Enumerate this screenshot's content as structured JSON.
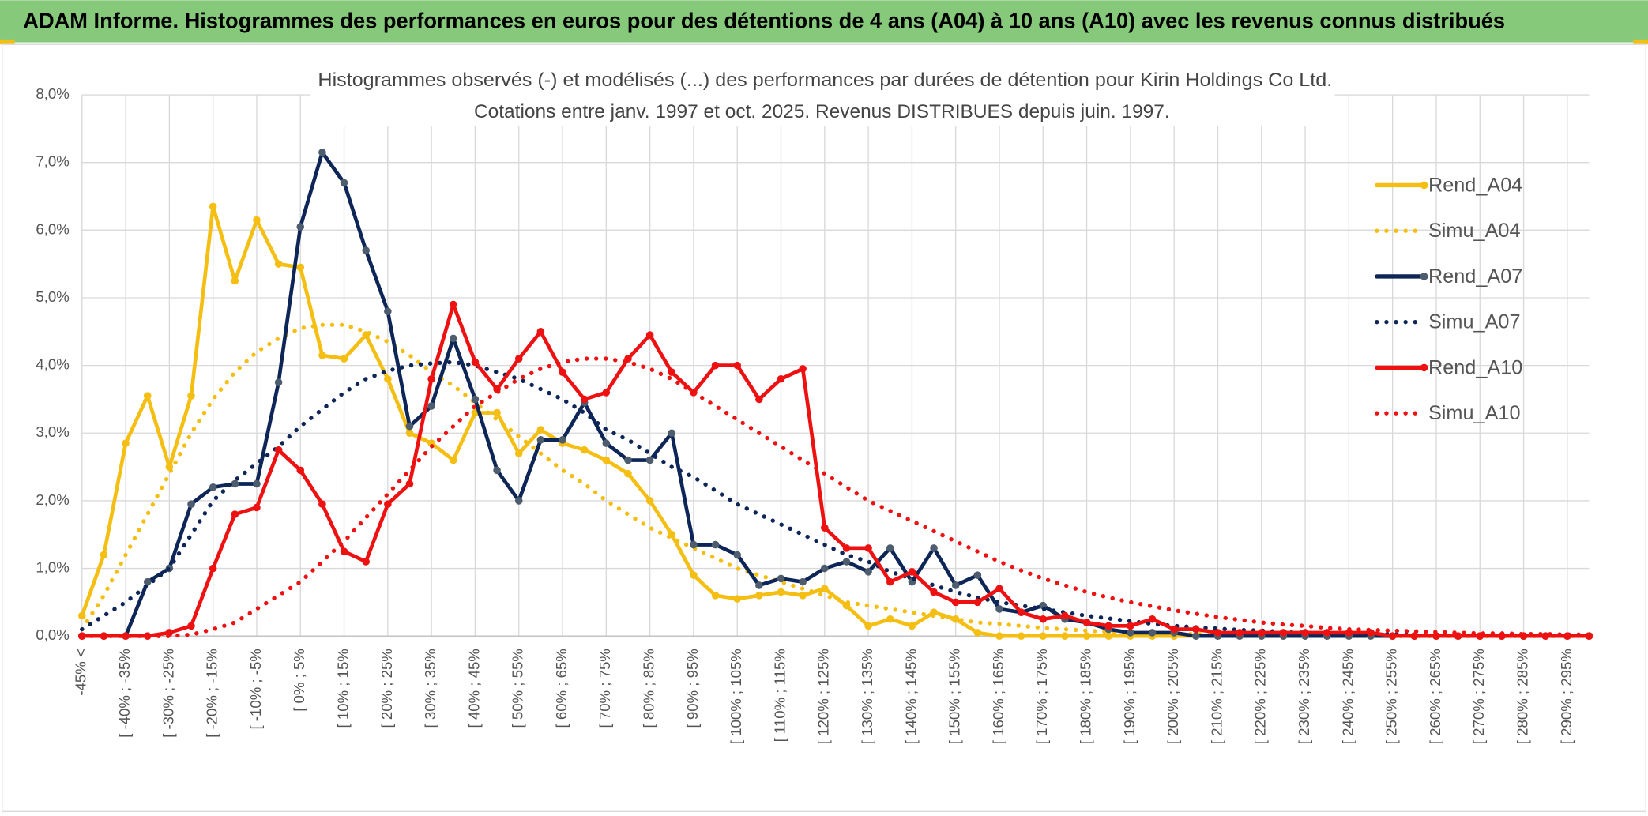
{
  "header": {
    "title": "ADAM Informe. Histogrammes des performances en euros pour des détentions de 4 ans (A04) à 10 ans (A10) avec les revenus connus distribués"
  },
  "chart_data": {
    "type": "line",
    "title": "Histogrammes observés (-) et modélisés (...) des performances par durées de détention pour Kirin Holdings Co Ltd.",
    "subtitle": "Cotations entre janv. 1997 et oct. 2025. Revenus DISTRIBUES depuis juin. 1997.",
    "categories": [
      "-45% <",
      null,
      "[ -40% ; -35%",
      null,
      "[ -30% ; -25%",
      null,
      "[ -20% ; -15%",
      null,
      "[ -10% ; -5%",
      null,
      "[ 0% ; 5%",
      null,
      "[ 10% ; 15%",
      null,
      "[ 20% ; 25%",
      null,
      "[ 30% ; 35%",
      null,
      "[ 40% ; 45%",
      null,
      "[ 50% ; 55%",
      null,
      "[ 60% ; 65%",
      null,
      "[ 70% ; 75%",
      null,
      "[ 80% ; 85%",
      null,
      "[ 90% ; 95%",
      null,
      "[ 100% ; 105%",
      null,
      "[ 110% ; 115%",
      null,
      "[ 120% ; 125%",
      null,
      "[ 130% ; 135%",
      null,
      "[ 140% ; 145%",
      null,
      "[ 150% ; 155%",
      null,
      "[ 160% ; 165%",
      null,
      "[ 170% ; 175%",
      null,
      "[ 180% ; 185%",
      null,
      "[ 190% ; 195%",
      null,
      "[ 200% ; 205%",
      null,
      "[ 210% ; 215%",
      null,
      "[ 220% ; 225%",
      null,
      "[ 230% ; 235%",
      null,
      "[ 240% ; 245%",
      null,
      "[ 250% ; 255%",
      null,
      "[ 260% ; 265%",
      null,
      "[ 270% ; 275%",
      null,
      "[ 280% ; 285%",
      null,
      "[ 290% ; 295%",
      null
    ],
    "series": [
      {
        "name": "Rend_A04",
        "color": "#f5be12",
        "marker_color": "#f5be12",
        "style": "solid",
        "marker": true,
        "values": [
          0.3,
          1.2,
          2.85,
          3.55,
          2.5,
          3.55,
          6.35,
          5.25,
          6.15,
          5.5,
          5.45,
          4.15,
          4.1,
          4.45,
          3.8,
          3.0,
          2.85,
          2.6,
          3.3,
          3.3,
          2.7,
          3.05,
          2.85,
          2.75,
          2.6,
          2.4,
          2.0,
          1.5,
          0.9,
          0.6,
          0.55,
          0.6,
          0.65,
          0.6,
          0.7,
          0.45,
          0.15,
          0.25,
          0.15,
          0.35,
          0.25,
          0.05,
          0,
          0,
          0,
          0,
          0,
          0,
          0,
          0,
          0,
          0,
          0,
          0,
          0,
          0,
          0,
          0,
          0,
          0,
          0,
          0,
          0,
          0,
          0,
          0,
          0,
          0,
          0,
          0
        ]
      },
      {
        "name": "Simu_A04",
        "color": "#f5be12",
        "style": "dotted",
        "marker": false,
        "values": [
          0.1,
          0.6,
          1.2,
          1.8,
          2.4,
          3.0,
          3.5,
          3.9,
          4.2,
          4.4,
          4.55,
          4.6,
          4.6,
          4.5,
          4.35,
          4.15,
          3.9,
          3.7,
          3.45,
          3.2,
          2.95,
          2.7,
          2.45,
          2.25,
          2.0,
          1.8,
          1.6,
          1.45,
          1.3,
          1.15,
          1.0,
          0.9,
          0.8,
          0.7,
          0.6,
          0.5,
          0.45,
          0.4,
          0.35,
          0.3,
          0.25,
          0.2,
          0.18,
          0.15,
          0.12,
          0.1,
          0.08,
          0.06,
          0.05,
          0.04,
          0.03,
          0.03,
          0.02,
          0.02,
          0.02,
          0.01,
          0.01,
          0.01,
          0.01,
          0.01,
          0,
          0,
          0,
          0,
          0,
          0,
          0,
          0,
          0,
          0
        ]
      },
      {
        "name": "Rend_A07",
        "color": "#0d2557",
        "marker_color": "#4d5d6d",
        "style": "solid",
        "marker": true,
        "values": [
          0,
          0,
          0,
          0.8,
          1.0,
          1.95,
          2.2,
          2.25,
          2.25,
          3.75,
          6.05,
          7.15,
          6.7,
          5.7,
          4.8,
          3.1,
          3.4,
          4.4,
          3.5,
          2.45,
          2.0,
          2.9,
          2.9,
          3.45,
          2.85,
          2.6,
          2.6,
          3.0,
          1.35,
          1.35,
          1.2,
          0.75,
          0.85,
          0.8,
          1.0,
          1.1,
          0.95,
          1.3,
          0.8,
          1.3,
          0.75,
          0.9,
          0.4,
          0.35,
          0.45,
          0.25,
          0.2,
          0.1,
          0.05,
          0.05,
          0.05,
          0,
          0,
          0,
          0,
          0,
          0,
          0,
          0,
          0,
          0,
          0,
          0,
          0,
          0,
          0,
          0,
          0,
          0,
          0
        ]
      },
      {
        "name": "Simu_A07",
        "color": "#0d2557",
        "style": "dotted",
        "marker": false,
        "values": [
          0.1,
          0.3,
          0.5,
          0.75,
          1.0,
          1.5,
          2.0,
          2.3,
          2.55,
          2.8,
          3.1,
          3.35,
          3.6,
          3.8,
          3.92,
          4.0,
          4.03,
          4.05,
          4.0,
          3.9,
          3.8,
          3.65,
          3.5,
          3.3,
          3.05,
          2.9,
          2.7,
          2.5,
          2.35,
          2.15,
          1.95,
          1.8,
          1.65,
          1.5,
          1.35,
          1.2,
          1.1,
          0.95,
          0.85,
          0.75,
          0.65,
          0.57,
          0.5,
          0.45,
          0.4,
          0.35,
          0.3,
          0.26,
          0.22,
          0.18,
          0.15,
          0.13,
          0.11,
          0.09,
          0.08,
          0.06,
          0.05,
          0.04,
          0.04,
          0.03,
          0.03,
          0.02,
          0.02,
          0.02,
          0.02,
          0.02,
          0.02,
          0.02,
          0.02,
          0.02
        ]
      },
      {
        "name": "Rend_A10",
        "color": "#ee1111",
        "marker_color": "#ee1111",
        "style": "solid",
        "marker": true,
        "values": [
          0,
          0,
          0,
          0,
          0.05,
          0.15,
          1.0,
          1.8,
          1.9,
          2.75,
          2.45,
          1.95,
          1.25,
          1.1,
          1.95,
          2.25,
          3.8,
          4.9,
          4.05,
          3.65,
          4.1,
          4.5,
          3.9,
          3.5,
          3.6,
          4.1,
          4.45,
          3.9,
          3.6,
          4.0,
          4.0,
          3.5,
          3.8,
          3.95,
          1.6,
          1.3,
          1.3,
          0.8,
          0.95,
          0.65,
          0.5,
          0.5,
          0.7,
          0.35,
          0.25,
          0.3,
          0.2,
          0.15,
          0.15,
          0.25,
          0.1,
          0.1,
          0.05,
          0.05,
          0.05,
          0.05,
          0.05,
          0.05,
          0.05,
          0.05,
          0,
          0,
          0,
          0,
          0,
          0,
          0,
          0,
          0,
          0
        ]
      },
      {
        "name": "Simu_A10",
        "color": "#ee1111",
        "style": "dotted",
        "marker": false,
        "values": [
          0,
          0,
          0,
          0,
          0,
          0.02,
          0.1,
          0.2,
          0.4,
          0.6,
          0.8,
          1.1,
          1.4,
          1.75,
          2.1,
          2.45,
          2.8,
          3.1,
          3.4,
          3.6,
          3.8,
          3.95,
          4.05,
          4.1,
          4.1,
          4.05,
          3.95,
          3.8,
          3.6,
          3.4,
          3.2,
          3.0,
          2.8,
          2.6,
          2.4,
          2.2,
          2.0,
          1.85,
          1.7,
          1.55,
          1.4,
          1.25,
          1.1,
          0.97,
          0.85,
          0.75,
          0.65,
          0.57,
          0.5,
          0.44,
          0.38,
          0.33,
          0.28,
          0.24,
          0.2,
          0.17,
          0.15,
          0.12,
          0.1,
          0.09,
          0.08,
          0.07,
          0.06,
          0.05,
          0.04,
          0.04,
          0.03,
          0.03,
          0.02,
          0.02
        ]
      }
    ],
    "ylim": [
      0,
      8
    ],
    "yticks": [
      {
        "value": 0,
        "label": "0,0%"
      },
      {
        "value": 1,
        "label": "1,0%"
      },
      {
        "value": 2,
        "label": "2,0%"
      },
      {
        "value": 3,
        "label": "3,0%"
      },
      {
        "value": 4,
        "label": "4,0%"
      },
      {
        "value": 5,
        "label": "5,0%"
      },
      {
        "value": 6,
        "label": "6,0%"
      },
      {
        "value": 7,
        "label": "7,0%"
      },
      {
        "value": 8,
        "label": "8,0%"
      }
    ],
    "grid": true,
    "legend": "right"
  }
}
